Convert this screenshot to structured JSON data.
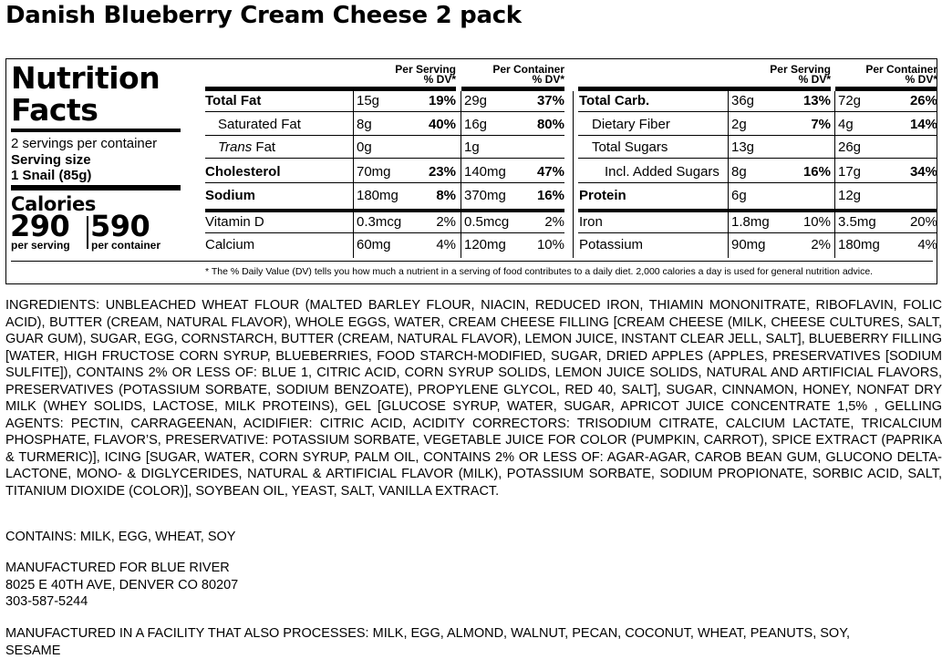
{
  "product_title": "Danish Blueberry Cream Cheese 2 pack",
  "label": {
    "heading_line1": "Nutrition",
    "heading_line2": "Facts",
    "servings_per_container": "2 servings per container",
    "serving_size_label": "Serving size",
    "serving_size_value": "1 Snail (85g)",
    "calories_label": "Calories",
    "calories_per_serving": "290",
    "calories_per_container": "590",
    "per_serving_label": "per serving",
    "per_container_label": "per container",
    "col_per_serving": "Per Serving",
    "col_per_container": "Per Container",
    "col_dv": "% DV*",
    "left_rows": [
      {
        "name": "Total Fat",
        "s_amt": "15g",
        "s_dv": "19%",
        "c_amt": "29g",
        "c_dv": "37%"
      },
      {
        "name": "Saturated Fat",
        "s_amt": "8g",
        "s_dv": "40%",
        "c_amt": "16g",
        "c_dv": "80%"
      },
      {
        "name_italic": "Trans",
        "name_rest": " Fat",
        "s_amt": "0g",
        "s_dv": "",
        "c_amt": "1g",
        "c_dv": ""
      },
      {
        "name": "Cholesterol",
        "s_amt": "70mg",
        "s_dv": "23%",
        "c_amt": "140mg",
        "c_dv": "47%"
      },
      {
        "name": "Sodium",
        "s_amt": "180mg",
        "s_dv": "8%",
        "c_amt": "370mg",
        "c_dv": "16%"
      },
      {
        "name": "Vitamin D",
        "s_amt": "0.3mcg",
        "s_dv": "2%",
        "c_amt": "0.5mcg",
        "c_dv": "2%"
      },
      {
        "name": "Calcium",
        "s_amt": "60mg",
        "s_dv": "4%",
        "c_amt": "120mg",
        "c_dv": "10%"
      }
    ],
    "right_rows": [
      {
        "name": "Total Carb.",
        "s_amt": "36g",
        "s_dv": "13%",
        "c_amt": "72g",
        "c_dv": "26%"
      },
      {
        "name": "Dietary Fiber",
        "s_amt": "2g",
        "s_dv": "7%",
        "c_amt": "4g",
        "c_dv": "14%"
      },
      {
        "name": "Total Sugars",
        "s_amt": "13g",
        "s_dv": "",
        "c_amt": "26g",
        "c_dv": ""
      },
      {
        "name": "Incl. Added Sugars",
        "s_amt": "8g",
        "s_dv": "16%",
        "c_amt": "17g",
        "c_dv": "34%"
      },
      {
        "name": "Protein",
        "s_amt": "6g",
        "s_dv": "",
        "c_amt": "12g",
        "c_dv": ""
      },
      {
        "name": "Iron",
        "s_amt": "1.8mg",
        "s_dv": "10%",
        "c_amt": "3.5mg",
        "c_dv": "20%"
      },
      {
        "name": "Potassium",
        "s_amt": "90mg",
        "s_dv": "2%",
        "c_amt": "180mg",
        "c_dv": "4%"
      }
    ],
    "footnote": "* The % Daily Value (DV) tells you how much a nutrient in a serving of food contributes to a daily diet. 2,000 calories a day is used for general nutrition advice."
  },
  "ingredients": "INGREDIENTS: UNBLEACHED WHEAT FLOUR (MALTED BARLEY FLOUR, NIACIN, REDUCED IRON, THIAMIN MONONITRATE, RIBOFLAVIN, FOLIC ACID), BUTTER (CREAM, NATURAL FLAVOR), WHOLE EGGS, WATER, CREAM CHEESE FILLING [CREAM CHEESE (MILK, CHEESE CULTURES, SALT, GUAR GUM), SUGAR, EGG, CORNSTARCH, BUTTER (CREAM, NATURAL FLAVOR), LEMON JUICE, INSTANT CLEAR JELL, SALT], BLUEBERRY FILLING [WATER, HIGH FRUCTOSE CORN SYRUP, BLUEBERRIES, FOOD STARCH-MODIFIED, SUGAR, DRIED APPLES (APPLES, PRESERVATIVES [SODIUM SULFITE]), CONTAINS 2% OR LESS OF: BLUE 1, CITRIC ACID, CORN SYRUP SOLIDS, LEMON JUICE SOLIDS, NATURAL AND ARTIFICIAL FLAVORS, PRESERVATIVES (POTASSIUM SORBATE, SODIUM BENZOATE), PROPYLENE GLYCOL, RED 40, SALT], SUGAR, CINNAMON, HONEY, NONFAT DRY MILK (WHEY SOLIDS, LACTOSE, MILK PROTEINS), GEL [GLUCOSE SYRUP, WATER, SUGAR, APRICOT JUICE CONCENTRATE 1,5% , GELLING AGENTS: PECTIN, CARRAGEENAN, ACIDIFIER: CITRIC ACID, ACIDITY CORRECTORS: TRISODIUM CITRATE, CALCIUM LACTATE, TRICALCIUM PHOSPHATE, FLAVOR’S, PRESERVATIVE: POTASSIUM SORBATE, VEGETABLE JUICE FOR COLOR (PUMPKIN, CARROT), SPICE EXTRACT (PAPRIKA & TURMERIC)], ICING [SUGAR, WATER, CORN SYRUP, PALM OIL, CONTAINS 2% OR LESS OF: AGAR-AGAR, CAROB BEAN GUM, GLUCONO DELTA-LACTONE, MONO- & DIGLYCERIDES, NATURAL & ARTIFICIAL FLAVOR (MILK), POTASSIUM SORBATE, SODIUM PROPIONATE, SORBIC ACID, SALT, TITANIUM DIOXIDE (COLOR)], SOYBEAN OIL, YEAST, SALT, VANILLA EXTRACT.",
  "contains": "CONTAINS: MILK, EGG, WHEAT, SOY",
  "manufacturer": {
    "line1": "MANUFACTURED FOR BLUE RIVER",
    "line2": "8025 E 40TH AVE, DENVER CO 80207",
    "line3": "303-587-5244"
  },
  "facility": {
    "line1": "MANUFACTURED IN A FACILITY THAT ALSO PROCESSES: MILK, EGG, ALMOND, WALNUT, PECAN, COCONUT, WHEAT, PEANUTS, SOY,",
    "line2": "SESAME"
  }
}
